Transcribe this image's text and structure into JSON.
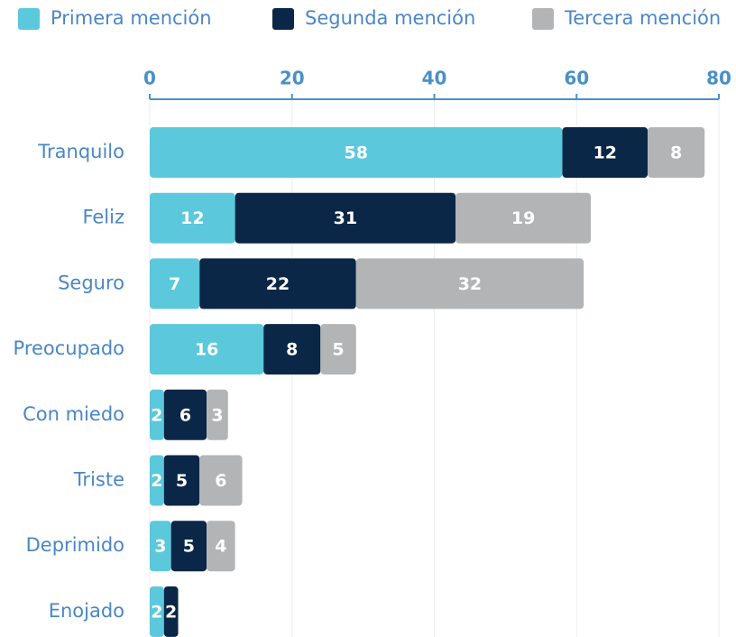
{
  "chart_data": {
    "type": "stacked_bar_horizontal",
    "categories": [
      "Tranquilo",
      "Feliz",
      "Seguro",
      "Preocupado",
      "Con miedo",
      "Triste",
      "Deprimido",
      "Enojado"
    ],
    "series": [
      {
        "name": "Primera mención",
        "color": "#5bc8dc",
        "values": [
          58,
          12,
          7,
          16,
          2,
          2,
          3,
          2
        ]
      },
      {
        "name": "Segunda mención",
        "color": "#0b2747",
        "values": [
          12,
          31,
          22,
          8,
          6,
          5,
          5,
          2
        ]
      },
      {
        "name": "Tercera mención",
        "color": "#b2b4b6",
        "values": [
          8,
          19,
          32,
          5,
          3,
          6,
          4,
          null
        ]
      }
    ],
    "xlim": [
      0,
      80
    ],
    "xticks": [
      0,
      20,
      40,
      60,
      80
    ],
    "grid": true,
    "legend": "top"
  }
}
